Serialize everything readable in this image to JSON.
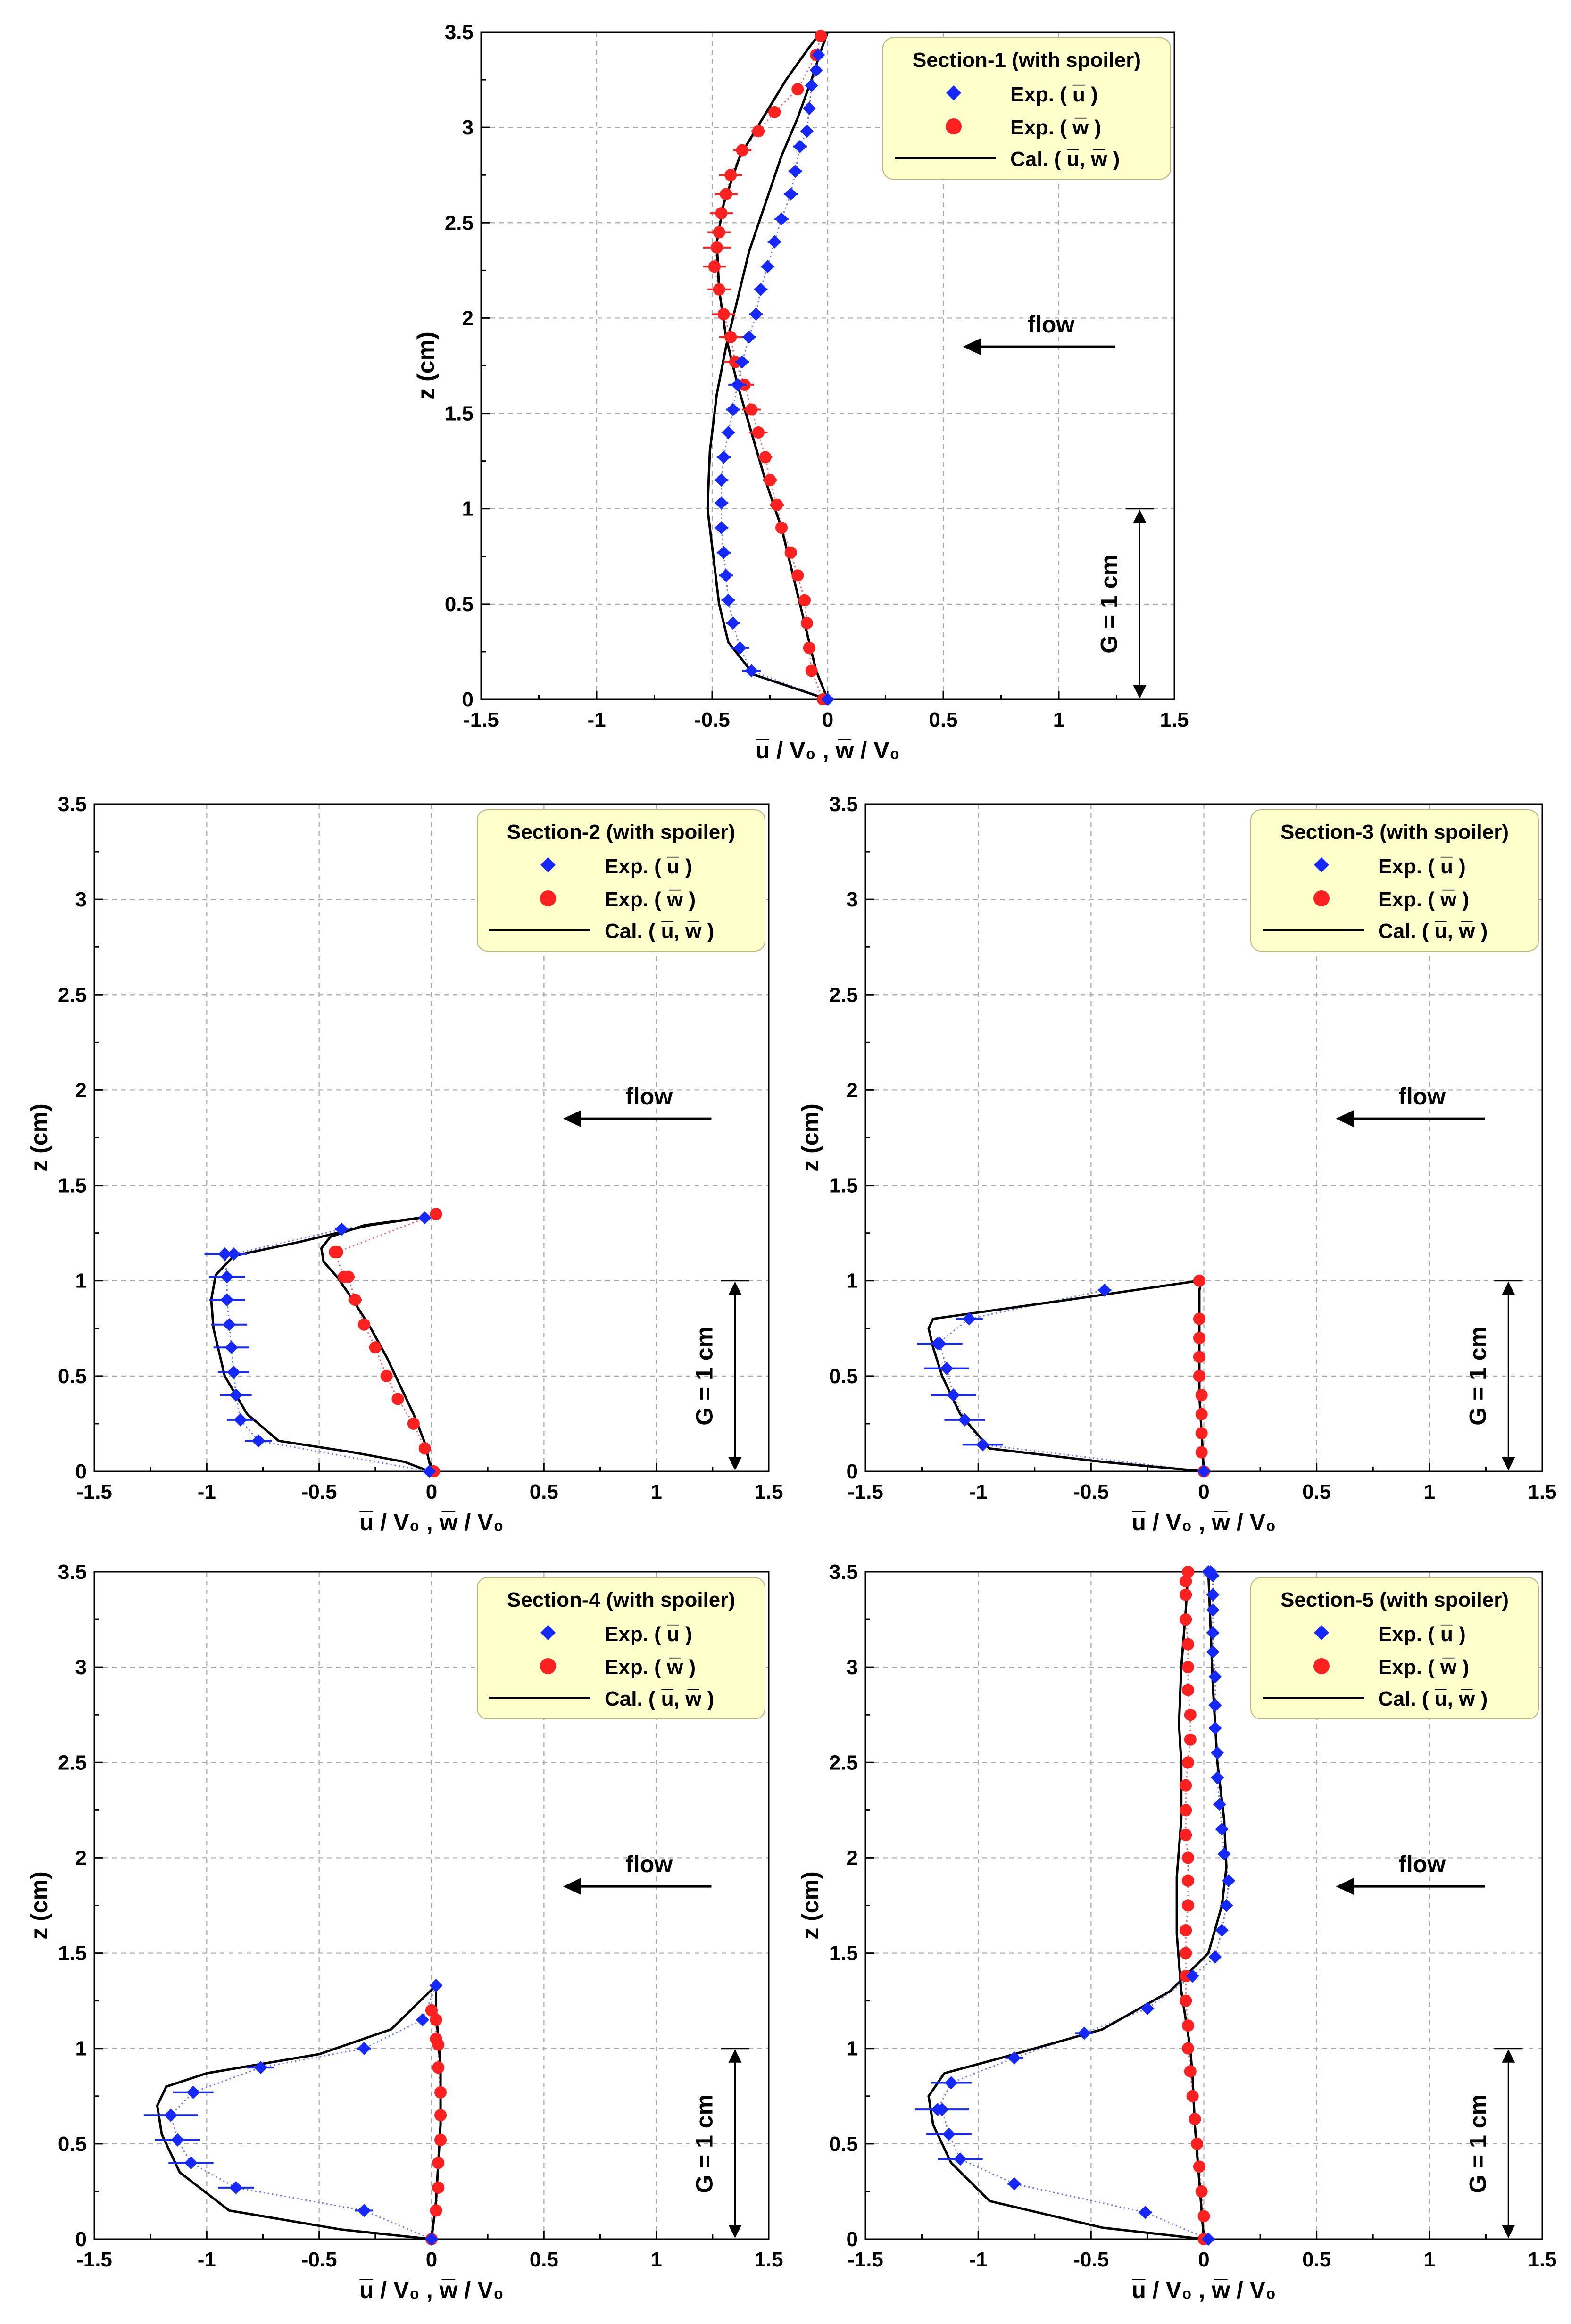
{
  "axis": {
    "xlabel": "u̅ / V₀ , w̅ / V₀",
    "ylabel": "z (cm)",
    "xlim": [
      -1.5,
      1.5
    ],
    "ylim": [
      0,
      3.5
    ],
    "xticks": [
      "-1.5",
      "-1",
      "-0.5",
      "0",
      "0.5",
      "1",
      "1.5"
    ],
    "yticks": [
      "0",
      "0.5",
      "1",
      "1.5",
      "2",
      "2.5",
      "3",
      "3.5"
    ]
  },
  "legend": {
    "exp_u": "Exp. ( u̅ )",
    "exp_w": "Exp. ( w̅ )",
    "cal": "Cal. ( u̅, w̅ )"
  },
  "annotations": {
    "flow": "flow",
    "gap": "G = 1 cm",
    "gap_value_cm": 1
  },
  "colors": {
    "u": "#1428ff",
    "w": "#ff2020",
    "legend_bg": "#ffffcc"
  },
  "chart_data": [
    {
      "type": "scatter",
      "title": "Section-1 (with spoiler)",
      "exp_u": {
        "x": [
          0.0,
          -0.33,
          -0.38,
          -0.41,
          -0.43,
          -0.44,
          -0.45,
          -0.46,
          -0.46,
          -0.46,
          -0.45,
          -0.43,
          -0.41,
          -0.39,
          -0.37,
          -0.34,
          -0.31,
          -0.29,
          -0.26,
          -0.23,
          -0.2,
          -0.16,
          -0.14,
          -0.12,
          -0.09,
          -0.08,
          -0.07,
          -0.05,
          -0.04
        ],
        "z": [
          0.0,
          0.15,
          0.27,
          0.4,
          0.52,
          0.65,
          0.77,
          0.9,
          1.03,
          1.15,
          1.27,
          1.4,
          1.52,
          1.65,
          1.77,
          1.9,
          2.02,
          2.15,
          2.27,
          2.4,
          2.52,
          2.65,
          2.77,
          2.9,
          2.98,
          3.1,
          3.22,
          3.3,
          3.38
        ],
        "xerr": [
          0,
          0.04,
          0.04,
          0.03,
          0.03,
          0.03,
          0.03,
          0.03,
          0.03,
          0.03,
          0.03,
          0.03,
          0.03,
          0.04,
          0.03,
          0.03,
          0.03,
          0.03,
          0.03,
          0.03,
          0.03,
          0.03,
          0.03,
          0.03,
          0.02,
          0.02,
          0.02,
          0.02,
          0.02
        ]
      },
      "exp_w": {
        "x": [
          -0.02,
          -0.07,
          -0.08,
          -0.09,
          -0.1,
          -0.13,
          -0.16,
          -0.2,
          -0.22,
          -0.25,
          -0.27,
          -0.3,
          -0.33,
          -0.36,
          -0.4,
          -0.42,
          -0.45,
          -0.47,
          -0.49,
          -0.48,
          -0.47,
          -0.46,
          -0.44,
          -0.42,
          -0.37,
          -0.3,
          -0.23,
          -0.13,
          -0.05,
          -0.03
        ],
        "z": [
          0.0,
          0.15,
          0.27,
          0.4,
          0.52,
          0.65,
          0.77,
          0.9,
          1.02,
          1.15,
          1.27,
          1.4,
          1.52,
          1.65,
          1.77,
          1.9,
          2.02,
          2.15,
          2.27,
          2.37,
          2.45,
          2.55,
          2.65,
          2.75,
          2.88,
          2.98,
          3.08,
          3.2,
          3.38,
          3.48
        ],
        "xerr": [
          0,
          0.02,
          0.02,
          0.02,
          0.02,
          0.02,
          0.02,
          0.02,
          0.03,
          0.03,
          0.03,
          0.04,
          0.04,
          0.04,
          0.05,
          0.05,
          0.05,
          0.05,
          0.05,
          0.06,
          0.05,
          0.05,
          0.05,
          0.05,
          0.04,
          0.03,
          0.03,
          0.02,
          0.02,
          0
        ]
      },
      "cal_u": {
        "x": [
          0.0,
          -0.32,
          -0.43,
          -0.47,
          -0.5,
          -0.52,
          -0.51,
          -0.48,
          -0.44,
          -0.39,
          -0.34,
          -0.27,
          -0.2,
          -0.13,
          -0.07,
          -0.03,
          0.0
        ],
        "z": [
          0.0,
          0.13,
          0.3,
          0.5,
          0.8,
          1.0,
          1.3,
          1.6,
          1.85,
          2.1,
          2.35,
          2.6,
          2.85,
          3.05,
          3.25,
          3.4,
          3.5
        ]
      },
      "cal_w": {
        "x": [
          0.0,
          -0.05,
          -0.1,
          -0.15,
          -0.2,
          -0.27,
          -0.33,
          -0.39,
          -0.44,
          -0.47,
          -0.48,
          -0.45,
          -0.38,
          -0.28,
          -0.18,
          -0.08,
          -0.03
        ],
        "z": [
          0.0,
          0.15,
          0.4,
          0.65,
          0.9,
          1.15,
          1.4,
          1.65,
          1.9,
          2.15,
          2.4,
          2.6,
          2.85,
          3.05,
          3.25,
          3.42,
          3.5
        ]
      }
    },
    {
      "type": "scatter",
      "title": "Section-2 (with spoiler)",
      "exp_u": {
        "x": [
          -0.01,
          -0.77,
          -0.85,
          -0.87,
          -0.88,
          -0.89,
          -0.9,
          -0.91,
          -0.91,
          -0.92,
          -0.92,
          -0.88,
          -0.4,
          -0.03
        ],
        "z": [
          0.0,
          0.16,
          0.27,
          0.4,
          0.52,
          0.65,
          0.77,
          0.9,
          1.02,
          1.14,
          1.14,
          1.14,
          1.27,
          1.33
        ],
        "xerr": [
          0,
          0.06,
          0.06,
          0.07,
          0.07,
          0.08,
          0.08,
          0.08,
          0.08,
          0.09,
          0.0,
          0.06,
          0.03,
          0
        ]
      },
      "exp_w": {
        "x": [
          0.01,
          -0.03,
          -0.08,
          -0.15,
          -0.2,
          -0.25,
          -0.3,
          -0.34,
          -0.37,
          -0.39,
          -0.43,
          -0.42,
          0.02
        ],
        "z": [
          0.0,
          0.12,
          0.25,
          0.38,
          0.5,
          0.65,
          0.77,
          0.9,
          1.02,
          1.02,
          1.15,
          1.15,
          1.35
        ],
        "xerr": [
          0,
          0.02,
          0.02,
          0.02,
          0.02,
          0.02,
          0.02,
          0.03,
          0.03,
          0,
          0.02,
          0,
          0
        ]
      },
      "cal_u": {
        "x": [
          -0.01,
          -0.12,
          -0.35,
          -0.68,
          -0.82,
          -0.92,
          -0.97,
          -0.98,
          -0.96,
          -0.88,
          -0.6,
          -0.28,
          -0.05
        ],
        "z": [
          0.0,
          0.05,
          0.1,
          0.16,
          0.3,
          0.5,
          0.75,
          0.9,
          1.03,
          1.13,
          1.2,
          1.29,
          1.33
        ],
        "xerr": []
      },
      "cal_w": {
        "x": [
          0.0,
          -0.03,
          -0.08,
          -0.14,
          -0.2,
          -0.27,
          -0.35,
          -0.42,
          -0.48,
          -0.49,
          -0.45,
          -0.3,
          -0.05
        ],
        "z": [
          0.0,
          0.15,
          0.3,
          0.45,
          0.6,
          0.75,
          0.9,
          1.02,
          1.1,
          1.17,
          1.23,
          1.29,
          1.33
        ]
      }
    },
    {
      "type": "scatter",
      "title": "Section-3 (with spoiler)",
      "exp_u": {
        "x": [
          0.0,
          -0.98,
          -1.06,
          -1.11,
          -1.14,
          -1.17,
          -1.18,
          -1.04,
          -0.44
        ],
        "z": [
          0.0,
          0.14,
          0.27,
          0.4,
          0.54,
          0.67,
          0.67,
          0.8,
          0.95
        ],
        "xerr": [
          0,
          0.09,
          0.09,
          0.1,
          0.1,
          0.1,
          0,
          0.06,
          0.03
        ]
      },
      "exp_w": {
        "x": [
          0.0,
          -0.01,
          -0.01,
          -0.01,
          -0.01,
          -0.02,
          -0.02,
          -0.02,
          -0.02,
          -0.02
        ],
        "z": [
          0.0,
          0.1,
          0.2,
          0.3,
          0.4,
          0.5,
          0.6,
          0.7,
          0.8,
          1.0
        ],
        "xerr": []
      },
      "cal_u": {
        "x": [
          0.0,
          -0.45,
          -0.95,
          -1.08,
          -1.16,
          -1.2,
          -1.22,
          -1.2,
          -0.6,
          -0.02
        ],
        "z": [
          0.0,
          0.05,
          0.12,
          0.3,
          0.5,
          0.65,
          0.75,
          0.8,
          0.9,
          1.0
        ]
      },
      "cal_w": {
        "x": [
          0.0,
          -0.01,
          -0.02,
          -0.02,
          -0.02,
          -0.02,
          -0.01
        ],
        "z": [
          0.0,
          0.2,
          0.4,
          0.6,
          0.8,
          0.95,
          1.0
        ]
      }
    },
    {
      "type": "scatter",
      "title": "Section-4 (with spoiler)",
      "exp_u": {
        "x": [
          0.0,
          -0.3,
          -0.87,
          -1.07,
          -1.13,
          -1.16,
          -1.16,
          -1.06,
          -0.76,
          -0.3,
          -0.04,
          0.02
        ],
        "z": [
          0.0,
          0.15,
          0.27,
          0.4,
          0.52,
          0.65,
          0.65,
          0.77,
          0.9,
          1.0,
          1.15,
          1.33
        ],
        "xerr": [
          0,
          0.04,
          0.08,
          0.1,
          0.1,
          0.12,
          0,
          0.09,
          0.06,
          0.03,
          0,
          0
        ]
      },
      "exp_w": {
        "x": [
          0.0,
          0.02,
          0.03,
          0.03,
          0.04,
          0.04,
          0.04,
          0.03,
          0.03,
          0.02,
          0.02,
          0.0
        ],
        "z": [
          0.0,
          0.15,
          0.27,
          0.4,
          0.52,
          0.65,
          0.77,
          0.9,
          1.02,
          1.05,
          1.15,
          1.2
        ],
        "xerr": []
      },
      "cal_u": {
        "x": [
          0.0,
          -0.4,
          -0.9,
          -1.12,
          -1.2,
          -1.22,
          -1.18,
          -1.0,
          -0.5,
          -0.18,
          -0.05,
          0.02
        ],
        "z": [
          0.0,
          0.05,
          0.15,
          0.35,
          0.55,
          0.7,
          0.8,
          0.87,
          0.97,
          1.1,
          1.25,
          1.33
        ]
      },
      "cal_w": {
        "x": [
          0.0,
          0.02,
          0.03,
          0.04,
          0.04,
          0.04,
          0.03,
          0.02,
          0.02
        ],
        "z": [
          0.0,
          0.2,
          0.4,
          0.6,
          0.75,
          0.9,
          1.05,
          1.2,
          1.33
        ]
      }
    },
    {
      "type": "scatter",
      "title": "Section-5 (with spoiler)",
      "exp_u": {
        "x": [
          0.02,
          -0.26,
          -0.84,
          -1.08,
          -1.13,
          -1.16,
          -1.18,
          -1.12,
          -0.84,
          -0.53,
          -0.25,
          -0.05,
          0.05,
          0.08,
          0.1,
          0.11,
          0.09,
          0.08,
          0.07,
          0.06,
          0.06,
          0.05,
          0.05,
          0.05,
          0.04,
          0.04,
          0.04,
          0.04,
          0.04,
          0.03,
          0.02
        ],
        "z": [
          0.0,
          0.14,
          0.29,
          0.42,
          0.55,
          0.68,
          0.68,
          0.82,
          0.95,
          1.08,
          1.21,
          1.38,
          1.48,
          1.62,
          1.75,
          1.88,
          2.02,
          2.15,
          2.28,
          2.42,
          2.55,
          2.68,
          2.8,
          2.95,
          3.08,
          3.18,
          3.3,
          3.38,
          3.48,
          3.5,
          3.5
        ],
        "xerr": [
          0,
          0.03,
          0.03,
          0.1,
          0.1,
          0.12,
          0,
          0.09,
          0.04,
          0.04,
          0.03,
          0,
          0,
          0,
          0,
          0,
          0,
          0,
          0,
          0,
          0,
          0,
          0,
          0,
          0,
          0,
          0,
          0,
          0,
          0,
          0
        ]
      },
      "exp_w": {
        "x": [
          0.0,
          0.0,
          -0.01,
          -0.02,
          -0.03,
          -0.04,
          -0.05,
          -0.06,
          -0.07,
          -0.07,
          -0.08,
          -0.08,
          -0.08,
          -0.08,
          -0.07,
          -0.07,
          -0.07,
          -0.08,
          -0.08,
          -0.08,
          -0.07,
          -0.06,
          -0.06,
          -0.07,
          -0.07,
          -0.07,
          -0.08,
          -0.08,
          -0.08,
          -0.07
        ],
        "z": [
          0.0,
          0.12,
          0.25,
          0.38,
          0.5,
          0.63,
          0.75,
          0.88,
          1.0,
          1.12,
          1.25,
          1.38,
          1.5,
          1.62,
          1.75,
          1.88,
          2.0,
          2.12,
          2.25,
          2.38,
          2.5,
          2.62,
          2.75,
          2.88,
          3.0,
          3.12,
          3.25,
          3.38,
          3.45,
          3.5
        ],
        "xerr": []
      },
      "cal_u": {
        "x": [
          0.0,
          -0.45,
          -0.95,
          -1.12,
          -1.2,
          -1.22,
          -1.15,
          -0.9,
          -0.45,
          -0.15,
          0.02,
          0.08,
          0.1,
          0.09,
          0.06,
          0.04,
          0.03,
          0.02
        ],
        "z": [
          0.0,
          0.06,
          0.2,
          0.4,
          0.6,
          0.75,
          0.87,
          0.95,
          1.1,
          1.3,
          1.5,
          1.75,
          1.95,
          2.2,
          2.5,
          2.9,
          3.2,
          3.5
        ]
      },
      "cal_w": {
        "x": [
          0.0,
          -0.02,
          -0.04,
          -0.05,
          -0.06,
          -0.08,
          -0.1,
          -0.12,
          -0.12,
          -0.1,
          -0.1,
          -0.11,
          -0.1,
          -0.08,
          -0.07
        ],
        "z": [
          0.0,
          0.3,
          0.6,
          0.85,
          1.0,
          1.15,
          1.3,
          1.6,
          1.9,
          2.2,
          2.5,
          2.7,
          3.0,
          3.3,
          3.5
        ]
      }
    }
  ]
}
